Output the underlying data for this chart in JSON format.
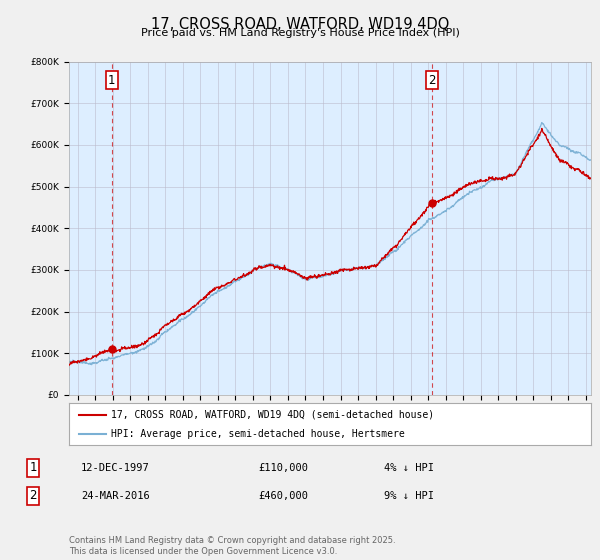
{
  "title": "17, CROSS ROAD, WATFORD, WD19 4DQ",
  "subtitle": "Price paid vs. HM Land Registry's House Price Index (HPI)",
  "legend_line1": "17, CROSS ROAD, WATFORD, WD19 4DQ (semi-detached house)",
  "legend_line2": "HPI: Average price, semi-detached house, Hertsmere",
  "footer": "Contains HM Land Registry data © Crown copyright and database right 2025.\nThis data is licensed under the Open Government Licence v3.0.",
  "point1_date": "12-DEC-1997",
  "point1_price": "£110,000",
  "point1_note": "4% ↓ HPI",
  "point2_date": "24-MAR-2016",
  "point2_price": "£460,000",
  "point2_note": "9% ↓ HPI",
  "red_color": "#cc0000",
  "blue_color": "#7ab0d4",
  "dashed_color": "#cc0000",
  "bg_color": "#f0f0f0",
  "plot_bg": "#ddeeff",
  "ylim": [
    0,
    800000
  ],
  "xlim_start": 1995.5,
  "xlim_end": 2025.3,
  "point1_x": 1997.95,
  "point1_y": 110000,
  "point2_x": 2016.23,
  "point2_y": 460000
}
